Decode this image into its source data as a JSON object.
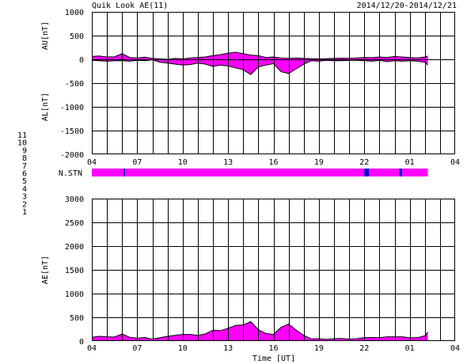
{
  "header": {
    "title": "Quik Look AE(11)",
    "date_range": "2014/12/20-2014/12/21"
  },
  "colors": {
    "magenta": "#ff00ff",
    "blue": "#0000ff",
    "grid": "#000000"
  },
  "station_legend": [
    {
      "label": "11",
      "color": "#00e5e5"
    },
    {
      "label": "10",
      "color": "#ff00ff"
    },
    {
      "label": "9",
      "color": "#0000cc"
    },
    {
      "label": "8",
      "color": "#ffd700"
    },
    {
      "label": "7",
      "color": "#c8c800"
    },
    {
      "label": "6",
      "color": "#ff0000"
    },
    {
      "label": "5",
      "color": "#c0c0c0"
    },
    {
      "label": "4",
      "color": "#a0a0a0"
    },
    {
      "label": "3",
      "color": "#00a0a0"
    },
    {
      "label": "2",
      "color": "#a000a0"
    },
    {
      "label": "1",
      "color": "#0000ff"
    }
  ],
  "chart_data": [
    {
      "type": "area",
      "panel": "AU/AL",
      "ylabel_top": "AU[nT]",
      "ylabel_bottom": "AL[nT]",
      "ylim": [
        -2000,
        1000
      ],
      "yticks": [
        "1000",
        "500",
        "0",
        "-500",
        "-1000",
        "-1500",
        "-2000"
      ],
      "xlim": [
        4,
        28
      ],
      "xtick_labels": [
        "04",
        "07",
        "10",
        "13",
        "16",
        "19",
        "22",
        "01",
        "04"
      ],
      "grid": true,
      "series": [
        {
          "name": "AU",
          "x": [
            4,
            4.5,
            5,
            5.5,
            6,
            6.5,
            7,
            7.5,
            8,
            8.5,
            9,
            9.5,
            10,
            10.5,
            11,
            11.5,
            12,
            12.5,
            13,
            13.5,
            14,
            14.5,
            15,
            15.5,
            16,
            16.5,
            17,
            17.5,
            18,
            18.5,
            19,
            19.5,
            20,
            20.5,
            21,
            21.5,
            22,
            22.5,
            23,
            23.5,
            24,
            24.5,
            25,
            25.5,
            26,
            26.2
          ],
          "values": [
            60,
            70,
            50,
            55,
            120,
            40,
            30,
            45,
            20,
            10,
            0,
            20,
            10,
            30,
            40,
            50,
            80,
            100,
            130,
            150,
            120,
            90,
            80,
            40,
            50,
            30,
            20,
            30,
            20,
            15,
            10,
            15,
            20,
            25,
            20,
            30,
            40,
            35,
            50,
            40,
            60,
            50,
            40,
            30,
            50,
            70
          ]
        },
        {
          "name": "AL",
          "x": [
            4,
            4.5,
            5,
            5.5,
            6,
            6.5,
            7,
            7.5,
            8,
            8.5,
            9,
            9.5,
            10,
            10.5,
            11,
            11.5,
            12,
            12.5,
            13,
            13.5,
            14,
            14.5,
            15,
            15.5,
            16,
            16.5,
            17,
            17.5,
            18,
            18.5,
            19,
            19.5,
            20,
            20.5,
            21,
            21.5,
            22,
            22.5,
            23,
            23.5,
            24,
            24.5,
            25,
            25.5,
            26,
            26.2
          ],
          "values": [
            -20,
            -30,
            -40,
            -30,
            -30,
            -40,
            -20,
            -30,
            -10,
            -60,
            -80,
            -100,
            -120,
            -110,
            -80,
            -100,
            -150,
            -120,
            -140,
            -180,
            -220,
            -320,
            -160,
            -120,
            -90,
            -260,
            -300,
            -200,
            -100,
            -30,
            -40,
            -20,
            -30,
            -30,
            -20,
            -20,
            -30,
            -40,
            -20,
            -50,
            -30,
            -40,
            -30,
            -40,
            -60,
            -120
          ]
        }
      ]
    },
    {
      "type": "bar",
      "panel": "N.STN",
      "label": "N.STN",
      "xlim": [
        4,
        28
      ],
      "segments": [
        {
          "x0": 4,
          "x1": 6.1,
          "value": 10
        },
        {
          "x0": 6.1,
          "x1": 6.2,
          "value": 9
        },
        {
          "x0": 6.2,
          "x1": 22,
          "value": 10
        },
        {
          "x0": 22,
          "x1": 22.3,
          "value": 9
        },
        {
          "x0": 22.3,
          "x1": 24.3,
          "value": 10
        },
        {
          "x0": 24.3,
          "x1": 24.5,
          "value": 9
        },
        {
          "x0": 24.5,
          "x1": 26.2,
          "value": 10
        }
      ]
    },
    {
      "type": "area",
      "panel": "AE",
      "ylabel": "AE[nT]",
      "xlabel": "Time [UT]",
      "ylim": [
        0,
        3000
      ],
      "yticks": [
        "3000",
        "2500",
        "2000",
        "1500",
        "1000",
        "500",
        "0"
      ],
      "xlim": [
        4,
        28
      ],
      "xtick_labels": [
        "04",
        "07",
        "10",
        "13",
        "16",
        "19",
        "22",
        "01",
        "04"
      ],
      "grid": true,
      "series": [
        {
          "name": "AE",
          "x": [
            4,
            4.5,
            5,
            5.5,
            6,
            6.5,
            7,
            7.5,
            8,
            8.5,
            9,
            9.5,
            10,
            10.5,
            11,
            11.5,
            12,
            12.5,
            13,
            13.5,
            14,
            14.5,
            15,
            15.5,
            16,
            16.5,
            17,
            17.5,
            18,
            18.5,
            19,
            19.5,
            20,
            20.5,
            21,
            21.5,
            22,
            22.5,
            23,
            23.5,
            24,
            24.5,
            25,
            25.5,
            26,
            26.2
          ],
          "values": [
            80,
            100,
            90,
            85,
            150,
            80,
            60,
            75,
            40,
            70,
            100,
            120,
            140,
            140,
            120,
            150,
            230,
            220,
            270,
            330,
            340,
            410,
            240,
            160,
            140,
            290,
            360,
            230,
            120,
            45,
            50,
            35,
            50,
            55,
            40,
            50,
            70,
            75,
            70,
            90,
            90,
            90,
            70,
            70,
            110,
            190
          ]
        }
      ]
    }
  ]
}
